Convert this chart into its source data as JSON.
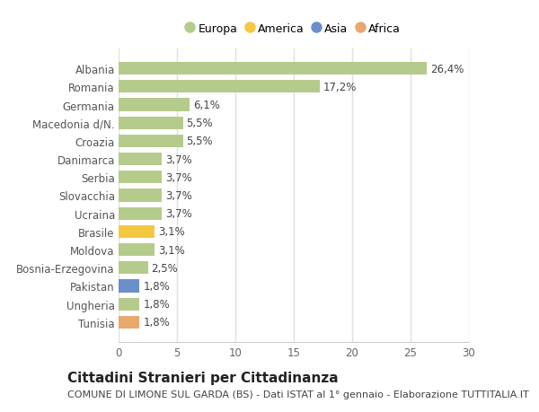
{
  "categories": [
    "Tunisia",
    "Ungheria",
    "Pakistan",
    "Bosnia-Erzegovina",
    "Moldova",
    "Brasile",
    "Ucraina",
    "Slovacchia",
    "Serbia",
    "Danimarca",
    "Croazia",
    "Macedonia d/N.",
    "Germania",
    "Romania",
    "Albania"
  ],
  "values": [
    1.8,
    1.8,
    1.8,
    2.5,
    3.1,
    3.1,
    3.7,
    3.7,
    3.7,
    3.7,
    5.5,
    5.5,
    6.1,
    17.2,
    26.4
  ],
  "labels": [
    "1,8%",
    "1,8%",
    "1,8%",
    "2,5%",
    "3,1%",
    "3,1%",
    "3,7%",
    "3,7%",
    "3,7%",
    "3,7%",
    "5,5%",
    "5,5%",
    "6,1%",
    "17,2%",
    "26,4%"
  ],
  "continents": [
    "Africa",
    "Europa",
    "Asia",
    "Europa",
    "Europa",
    "America",
    "Europa",
    "Europa",
    "Europa",
    "Europa",
    "Europa",
    "Europa",
    "Europa",
    "Europa",
    "Europa"
  ],
  "colors": {
    "Europa": "#b5cb8b",
    "America": "#f5c842",
    "Asia": "#6a8fcb",
    "Africa": "#e8a86e"
  },
  "legend_labels": [
    "Europa",
    "America",
    "Asia",
    "Africa"
  ],
  "legend_colors": [
    "#b5cb8b",
    "#f5c842",
    "#6a8fcb",
    "#e8a86e"
  ],
  "title": "Cittadini Stranieri per Cittadinanza",
  "subtitle": "COMUNE DI LIMONE SUL GARDA (BS) - Dati ISTAT al 1° gennaio - Elaborazione TUTTITALIA.IT",
  "xlim": [
    0,
    30
  ],
  "xticks": [
    0,
    5,
    10,
    15,
    20,
    25,
    30
  ],
  "background_color": "#ffffff",
  "plot_bg_color": "#ffffff",
  "grid_color": "#e0e0e0",
  "bar_height": 0.7,
  "label_fontsize": 8.5,
  "tick_fontsize": 8.5,
  "title_fontsize": 11,
  "subtitle_fontsize": 8
}
